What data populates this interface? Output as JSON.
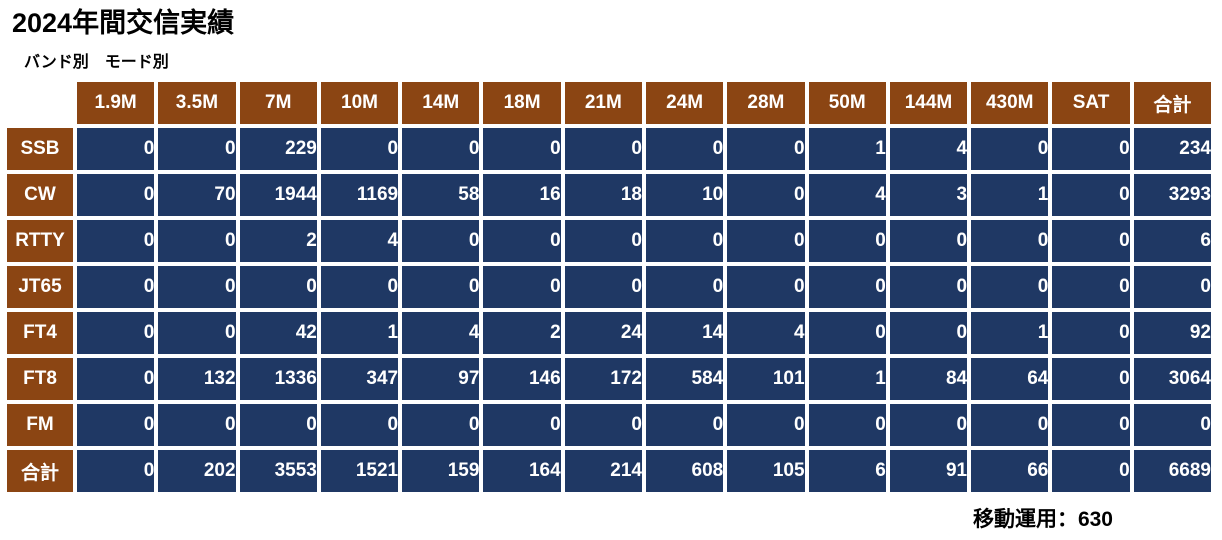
{
  "page": {
    "title": "2024年間交信実績",
    "subtitle": "バンド別　モード別",
    "footer_note": "移動運用：630"
  },
  "colors": {
    "header_bg": "#8B4513",
    "data_cell_bg": "#1F3864",
    "cell_text": "#FFFFFF",
    "grid": "#FFFFFF",
    "page_text": "#000000"
  },
  "chart_data": {
    "type": "table",
    "title": "2024年間交信実績",
    "subtitle": "バンド別　モード別",
    "columns": [
      "1.9M",
      "3.5M",
      "7M",
      "10M",
      "14M",
      "18M",
      "21M",
      "24M",
      "28M",
      "50M",
      "144M",
      "430M",
      "SAT",
      "合計"
    ],
    "rows": [
      {
        "label": "SSB",
        "values": [
          0,
          0,
          229,
          0,
          0,
          0,
          0,
          0,
          0,
          1,
          4,
          0,
          0,
          234
        ]
      },
      {
        "label": "CW",
        "values": [
          0,
          70,
          1944,
          1169,
          58,
          16,
          18,
          10,
          0,
          4,
          3,
          1,
          0,
          3293
        ]
      },
      {
        "label": "RTTY",
        "values": [
          0,
          0,
          2,
          4,
          0,
          0,
          0,
          0,
          0,
          0,
          0,
          0,
          0,
          6
        ]
      },
      {
        "label": "JT65",
        "values": [
          0,
          0,
          0,
          0,
          0,
          0,
          0,
          0,
          0,
          0,
          0,
          0,
          0,
          0
        ]
      },
      {
        "label": "FT4",
        "values": [
          0,
          0,
          42,
          1,
          4,
          2,
          24,
          14,
          4,
          0,
          0,
          1,
          0,
          92
        ]
      },
      {
        "label": "FT8",
        "values": [
          0,
          132,
          1336,
          347,
          97,
          146,
          172,
          584,
          101,
          1,
          84,
          64,
          0,
          3064
        ]
      },
      {
        "label": "FM",
        "values": [
          0,
          0,
          0,
          0,
          0,
          0,
          0,
          0,
          0,
          0,
          0,
          0,
          0,
          0
        ]
      },
      {
        "label": "合計",
        "values": [
          0,
          202,
          3553,
          1521,
          159,
          164,
          214,
          608,
          105,
          6,
          91,
          66,
          0,
          6689
        ]
      }
    ],
    "footer_note": "移動運用：630"
  }
}
